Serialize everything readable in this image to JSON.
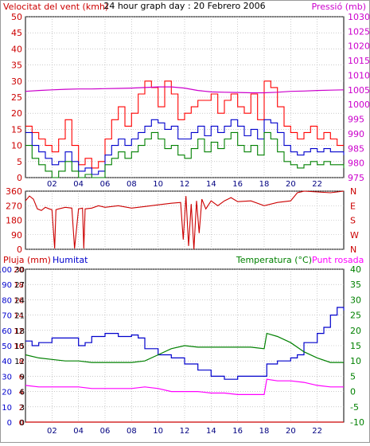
{
  "title": "24 hour graph day : 20 Febrero 2006",
  "colors": {
    "gust": "#ff0000",
    "wind": "#0000cc",
    "wind_green": "#008000",
    "pressure": "#cc00cc",
    "direction": "#cc0000",
    "humidity": "#0000cc",
    "temperature": "#008000",
    "dewpoint": "#ff00ff",
    "rain": "#cc0000",
    "grid": "#aaaaaa"
  },
  "chart_data": [
    {
      "type": "line",
      "name": "wind-pressure",
      "left_label": "Velocitat del vent (kmh)",
      "right_label": "Pressió (mb)",
      "ylim": [
        0,
        50
      ],
      "y2lim": [
        975,
        1030
      ],
      "y_ticks": [
        0,
        5,
        10,
        15,
        20,
        25,
        30,
        35,
        40,
        45,
        50
      ],
      "y2_ticks": [
        975,
        980,
        985,
        990,
        995,
        1000,
        1005,
        1010,
        1015,
        1020,
        1025,
        1030
      ],
      "xlim": [
        0,
        24
      ],
      "x_ticks": [
        "02",
        "04",
        "06",
        "08",
        "10",
        "12",
        "14",
        "16",
        "18",
        "20",
        "22"
      ],
      "series": [
        {
          "role": "gust",
          "x": [
            0,
            0.5,
            1,
            1.5,
            2,
            2.5,
            3,
            3.5,
            4,
            4.5,
            5,
            5.5,
            6,
            6.5,
            7,
            7.5,
            8,
            8.5,
            9,
            9.5,
            10,
            10.5,
            11,
            11.5,
            12,
            12.5,
            13,
            13.5,
            14,
            14.5,
            15,
            15.5,
            16,
            16.5,
            17,
            17.5,
            18,
            18.5,
            19,
            19.5,
            20,
            20.5,
            21,
            21.5,
            22,
            22.5,
            23,
            23.5,
            24
          ],
          "values": [
            16,
            14,
            12,
            10,
            8,
            12,
            18,
            10,
            4,
            6,
            3,
            5,
            12,
            18,
            22,
            16,
            20,
            26,
            30,
            28,
            22,
            30,
            26,
            18,
            20,
            22,
            24,
            24,
            26,
            20,
            24,
            26,
            22,
            20,
            26,
            18,
            30,
            28,
            22,
            16,
            14,
            12,
            14,
            16,
            12,
            14,
            12,
            10,
            10
          ]
        },
        {
          "role": "wind",
          "x": [
            0,
            0.5,
            1,
            1.5,
            2,
            2.5,
            3,
            3.5,
            4,
            4.5,
            5,
            5.5,
            6,
            6.5,
            7,
            7.5,
            8,
            8.5,
            9,
            9.5,
            10,
            10.5,
            11,
            11.5,
            12,
            12.5,
            13,
            13.5,
            14,
            14.5,
            15,
            15.5,
            16,
            16.5,
            17,
            17.5,
            18,
            18.5,
            19,
            19.5,
            20,
            20.5,
            21,
            21.5,
            22,
            22.5,
            23,
            23.5,
            24
          ],
          "values": [
            14,
            10,
            8,
            6,
            4,
            5,
            8,
            5,
            2,
            3,
            1,
            2,
            7,
            10,
            12,
            10,
            12,
            14,
            16,
            18,
            17,
            15,
            16,
            12,
            12,
            14,
            16,
            13,
            16,
            14,
            16,
            18,
            16,
            13,
            15,
            12,
            18,
            17,
            14,
            10,
            8,
            7,
            8,
            9,
            8,
            9,
            8,
            8,
            7
          ]
        },
        {
          "role": "wind_green",
          "x": [
            0,
            0.5,
            1,
            1.5,
            2,
            2.5,
            3,
            3.5,
            4,
            4.5,
            5,
            5.5,
            6,
            6.5,
            7,
            7.5,
            8,
            8.5,
            9,
            9.5,
            10,
            10.5,
            11,
            11.5,
            12,
            12.5,
            13,
            13.5,
            14,
            14.5,
            15,
            15.5,
            16,
            16.5,
            17,
            17.5,
            18,
            18.5,
            19,
            19.5,
            20,
            20.5,
            21,
            21.5,
            22,
            22.5,
            23,
            23.5,
            24
          ],
          "values": [
            10,
            6,
            4,
            2,
            0,
            2,
            5,
            2,
            0,
            1,
            0,
            0,
            4,
            6,
            8,
            6,
            8,
            10,
            12,
            14,
            12,
            9,
            10,
            7,
            6,
            9,
            12,
            8,
            11,
            9,
            12,
            14,
            10,
            8,
            10,
            7,
            14,
            12,
            8,
            5,
            4,
            3,
            4,
            5,
            4,
            5,
            4,
            4,
            3
          ]
        },
        {
          "role": "pressure",
          "x": [
            0,
            1,
            2,
            3,
            4,
            5,
            6,
            7,
            8,
            9,
            10,
            11,
            12,
            13,
            14,
            15,
            16,
            17,
            18,
            19,
            20,
            21,
            22,
            23,
            24
          ],
          "values": [
            1004.5,
            1004.8,
            1005,
            1005.2,
            1005.3,
            1005.3,
            1005.4,
            1005.5,
            1005.6,
            1005.8,
            1006,
            1006,
            1005.6,
            1004.8,
            1004.3,
            1004.2,
            1004.1,
            1004,
            1004,
            1004.2,
            1004.5,
            1004.6,
            1004.8,
            1004.9,
            1005
          ]
        }
      ]
    },
    {
      "type": "line",
      "name": "wind-direction",
      "ylim": [
        0,
        360
      ],
      "y_ticks": [
        0,
        90,
        180,
        270,
        360
      ],
      "y2_labels": [
        "N",
        "W",
        "S",
        "E",
        "N"
      ],
      "xlim": [
        0,
        24
      ],
      "series": [
        {
          "role": "direction",
          "x": [
            0,
            0.3,
            0.6,
            0.9,
            1.2,
            1.5,
            1.8,
            2,
            2.2,
            2.3,
            2.5,
            3,
            3.5,
            3.7,
            4,
            4.3,
            4.4,
            4.5,
            5,
            5.5,
            6,
            7,
            8,
            9,
            10,
            11,
            11.7,
            11.9,
            12.1,
            12.3,
            12.5,
            12.7,
            12.9,
            13.1,
            13.3,
            13.6,
            14,
            14.5,
            15,
            15.5,
            16,
            17,
            18,
            19,
            20,
            20.5,
            21,
            22,
            23,
            24
          ],
          "values": [
            300,
            330,
            310,
            250,
            240,
            260,
            250,
            245,
            5,
            245,
            250,
            260,
            255,
            5,
            250,
            255,
            5,
            250,
            255,
            270,
            260,
            270,
            255,
            265,
            275,
            285,
            290,
            60,
            330,
            20,
            280,
            0,
            300,
            100,
            310,
            250,
            300,
            270,
            300,
            320,
            295,
            300,
            270,
            290,
            300,
            350,
            360,
            355,
            350,
            360
          ]
        }
      ]
    },
    {
      "type": "line",
      "name": "rain-humidity-temperature",
      "left_label": "Pluja (mm)",
      "left_label2": "Humitat",
      "right_label": "Temperatura (°C)",
      "right_label2": "Punt rosada",
      "rain_ticks": [
        0,
        2,
        4,
        6,
        8,
        10,
        12,
        14,
        16,
        18,
        20
      ],
      "humidity_ticks": [
        0,
        10,
        20,
        30,
        40,
        50,
        60,
        70,
        80,
        90,
        100
      ],
      "mid_ticks": [
        0,
        3,
        6,
        9,
        12,
        15,
        18,
        21,
        24,
        27,
        30
      ],
      "temp_ticks": [
        -10,
        -5,
        0,
        5,
        10,
        15,
        20,
        25,
        30,
        35,
        40
      ],
      "ylim": [
        0,
        100
      ],
      "y2lim": [
        -10,
        40
      ],
      "xlim": [
        0,
        24
      ],
      "x_ticks": [
        "02",
        "04",
        "06",
        "08",
        "10",
        "12",
        "14",
        "16",
        "18",
        "20",
        "22"
      ],
      "series": [
        {
          "role": "humidity",
          "axis": "humidity",
          "x": [
            0,
            0.5,
            1,
            2,
            3,
            4,
            4.5,
            5,
            6,
            7,
            8,
            8.5,
            9,
            10,
            11,
            12,
            13,
            14,
            15,
            16,
            17,
            18,
            18.2,
            19,
            20,
            20.5,
            21,
            22,
            22.5,
            23,
            23.5,
            24
          ],
          "values": [
            53,
            50,
            52,
            55,
            55,
            50,
            52,
            56,
            58,
            56,
            57,
            55,
            48,
            44,
            42,
            38,
            34,
            30,
            28,
            30,
            30,
            30,
            38,
            40,
            42,
            44,
            52,
            58,
            62,
            70,
            75,
            73
          ]
        },
        {
          "role": "temperature",
          "axis": "temp",
          "x": [
            0,
            1,
            2,
            3,
            4,
            5,
            6,
            7,
            8,
            9,
            10,
            11,
            12,
            13,
            14,
            15,
            16,
            17,
            18,
            18.2,
            19,
            20,
            21,
            22,
            23,
            24
          ],
          "values": [
            12,
            11,
            10.5,
            10,
            10,
            9.5,
            9.5,
            9.5,
            9.5,
            10,
            12,
            14,
            15,
            14.5,
            14.5,
            14.5,
            14.5,
            14.5,
            14,
            19,
            18,
            16,
            13,
            11,
            9.5,
            9.5
          ]
        },
        {
          "role": "dewpoint",
          "axis": "temp",
          "x": [
            0,
            1,
            2,
            3,
            4,
            5,
            6,
            7,
            8,
            9,
            10,
            11,
            12,
            13,
            14,
            15,
            16,
            17,
            18,
            18.2,
            19,
            20,
            21,
            22,
            23,
            24
          ],
          "values": [
            2,
            1.5,
            1.5,
            1.5,
            1.5,
            1,
            1,
            1,
            1,
            1.5,
            1,
            0,
            0,
            0,
            -0.5,
            -0.5,
            -1,
            -1,
            -1,
            4,
            3.5,
            3.5,
            3,
            2,
            1.5,
            1.5
          ]
        },
        {
          "role": "rain",
          "axis": "rain",
          "x": [
            0,
            24
          ],
          "values": [
            0,
            0
          ]
        }
      ]
    }
  ]
}
